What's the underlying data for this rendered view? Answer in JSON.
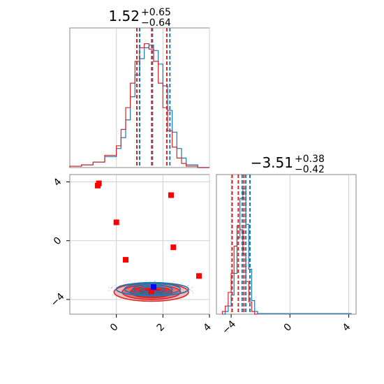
{
  "chart_data": [
    {
      "type": "histogram",
      "panel": "top-left",
      "title": {
        "value": "1.52",
        "plus": "+0.65",
        "minus": "−0.64"
      },
      "xlim": [
        -2,
        4
      ],
      "x_ticks": [
        0,
        2,
        4
      ],
      "grid": true,
      "series": [
        {
          "color": "#1f77b4",
          "quantiles": [
            1.0,
            1.55,
            2.3
          ],
          "bins": [
            -2,
            -1.5,
            -1,
            -0.5,
            0,
            0.2,
            0.4,
            0.6,
            0.8,
            1.0,
            1.2,
            1.4,
            1.6,
            1.8,
            2.0,
            2.2,
            2.4,
            2.6,
            2.8,
            3.0,
            3.5,
            4.0
          ],
          "counts": [
            0.01,
            0.02,
            0.04,
            0.08,
            0.14,
            0.22,
            0.35,
            0.52,
            0.68,
            0.8,
            0.88,
            0.9,
            0.86,
            0.76,
            0.6,
            0.42,
            0.26,
            0.14,
            0.07,
            0.02,
            0.0
          ]
        },
        {
          "color": "#d62728",
          "quantiles": [
            0.88,
            1.52,
            2.17
          ],
          "bins": [
            -2,
            -1.5,
            -1,
            -0.5,
            0,
            0.2,
            0.4,
            0.6,
            0.8,
            1.0,
            1.2,
            1.4,
            1.6,
            1.8,
            2.0,
            2.2,
            2.4,
            2.6,
            2.8,
            3.0,
            3.5,
            4.0
          ],
          "counts": [
            0.01,
            0.02,
            0.04,
            0.09,
            0.16,
            0.28,
            0.44,
            0.62,
            0.78,
            0.88,
            0.91,
            0.87,
            0.78,
            0.62,
            0.44,
            0.27,
            0.15,
            0.07,
            0.03,
            0.01,
            0.0
          ]
        }
      ]
    },
    {
      "type": "histogram",
      "panel": "bottom-right",
      "title": {
        "value": "−3.51",
        "plus": "+0.38",
        "minus": "−0.42"
      },
      "xlim": [
        -5,
        4.5
      ],
      "x_ticks": [
        -4,
        0,
        4
      ],
      "grid": true,
      "series": [
        {
          "color": "#1f77b4",
          "quantiles": [
            -3.25,
            -3.0,
            -2.72
          ],
          "bins": [
            -4.6,
            -4.4,
            -4.2,
            -4.0,
            -3.8,
            -3.6,
            -3.4,
            -3.2,
            -3.0,
            -2.8,
            -2.6,
            -2.4,
            -2.2
          ],
          "counts": [
            0.0,
            0.02,
            0.06,
            0.14,
            0.3,
            0.56,
            0.85,
            0.92,
            0.66,
            0.33,
            0.1,
            0.02
          ]
        },
        {
          "color": "#d62728",
          "quantiles": [
            -3.93,
            -3.51,
            -3.13
          ],
          "bins": [
            -4.6,
            -4.4,
            -4.2,
            -4.0,
            -3.8,
            -3.6,
            -3.4,
            -3.2,
            -3.0,
            -2.8,
            -2.6,
            -2.4,
            -2.2
          ],
          "counts": [
            0.02,
            0.06,
            0.16,
            0.3,
            0.5,
            0.65,
            0.62,
            0.44,
            0.24,
            0.09,
            0.02,
            0.0
          ]
        }
      ]
    },
    {
      "type": "scatter",
      "panel": "bottom-left",
      "xlim": [
        -2,
        4
      ],
      "ylim": [
        -5,
        4.5
      ],
      "x_ticks": [
        0,
        2,
        4
      ],
      "y_ticks": [
        -4,
        0,
        4
      ],
      "grid": true,
      "contours": [
        {
          "color": "#1f77b4",
          "center": [
            1.55,
            -3.3
          ],
          "levels": [
            [
              1.55,
              0.45
            ],
            [
              1.2,
              0.38
            ],
            [
              0.85,
              0.28
            ],
            [
              0.5,
              0.18
            ]
          ]
        },
        {
          "color": "#d62728",
          "center": [
            1.5,
            -3.5
          ],
          "levels": [
            [
              1.6,
              0.62
            ],
            [
              1.25,
              0.5
            ],
            [
              0.9,
              0.38
            ],
            [
              0.55,
              0.25
            ]
          ]
        }
      ],
      "points": [
        {
          "x": -0.8,
          "y": 3.75,
          "color": "#ff0000",
          "shape": "square"
        },
        {
          "x": -0.75,
          "y": 3.9,
          "color": "#ff0000",
          "shape": "square"
        },
        {
          "x": 0.0,
          "y": 1.25,
          "color": "#ff0000",
          "shape": "square"
        },
        {
          "x": 2.35,
          "y": 3.1,
          "color": "#ff0000",
          "shape": "square"
        },
        {
          "x": 0.4,
          "y": -1.3,
          "color": "#ff0000",
          "shape": "square"
        },
        {
          "x": 2.45,
          "y": -0.45,
          "color": "#ff0000",
          "shape": "square"
        },
        {
          "x": 3.55,
          "y": -2.4,
          "color": "#ff0000",
          "shape": "square"
        },
        {
          "x": 1.5,
          "y": -3.45,
          "color": "#ff0000",
          "shape": "square"
        },
        {
          "x": 1.6,
          "y": -3.15,
          "color": "#0000ff",
          "shape": "square"
        }
      ]
    }
  ]
}
